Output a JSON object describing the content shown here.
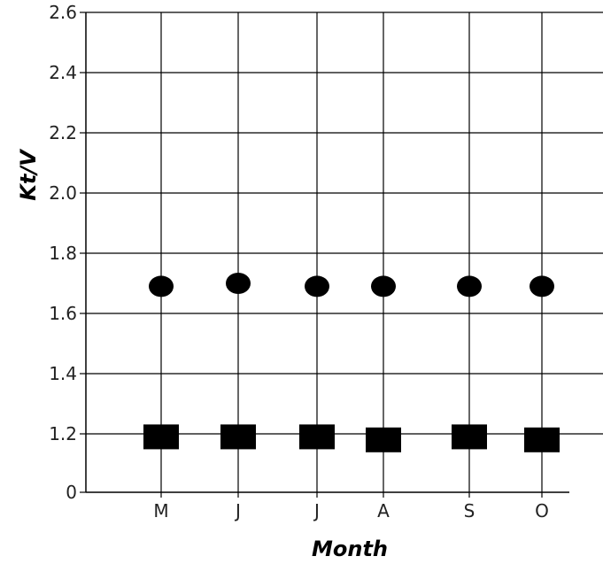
{
  "chart_data": {
    "type": "scatter",
    "xlabel": "Month",
    "ylabel": "Kt/V",
    "categories": [
      "M",
      "J",
      "J",
      "A",
      "S",
      "O"
    ],
    "y_ticks": [
      "0",
      "1.2",
      "1.4",
      "1.6",
      "1.8",
      "2.0",
      "2.2",
      "2.4",
      "2.6"
    ],
    "ylim": [
      1.0,
      2.6
    ],
    "y_axis_break": "bottom tick labelled 0 sits directly below 1.2",
    "grid": true,
    "series": [
      {
        "marker": "circle",
        "color": "#000000",
        "values": [
          1.69,
          1.7,
          1.69,
          1.69,
          1.69,
          1.69
        ]
      },
      {
        "marker": "square",
        "color": "#000000",
        "values": [
          1.19,
          1.19,
          1.19,
          1.18,
          1.19,
          1.18
        ]
      }
    ]
  }
}
